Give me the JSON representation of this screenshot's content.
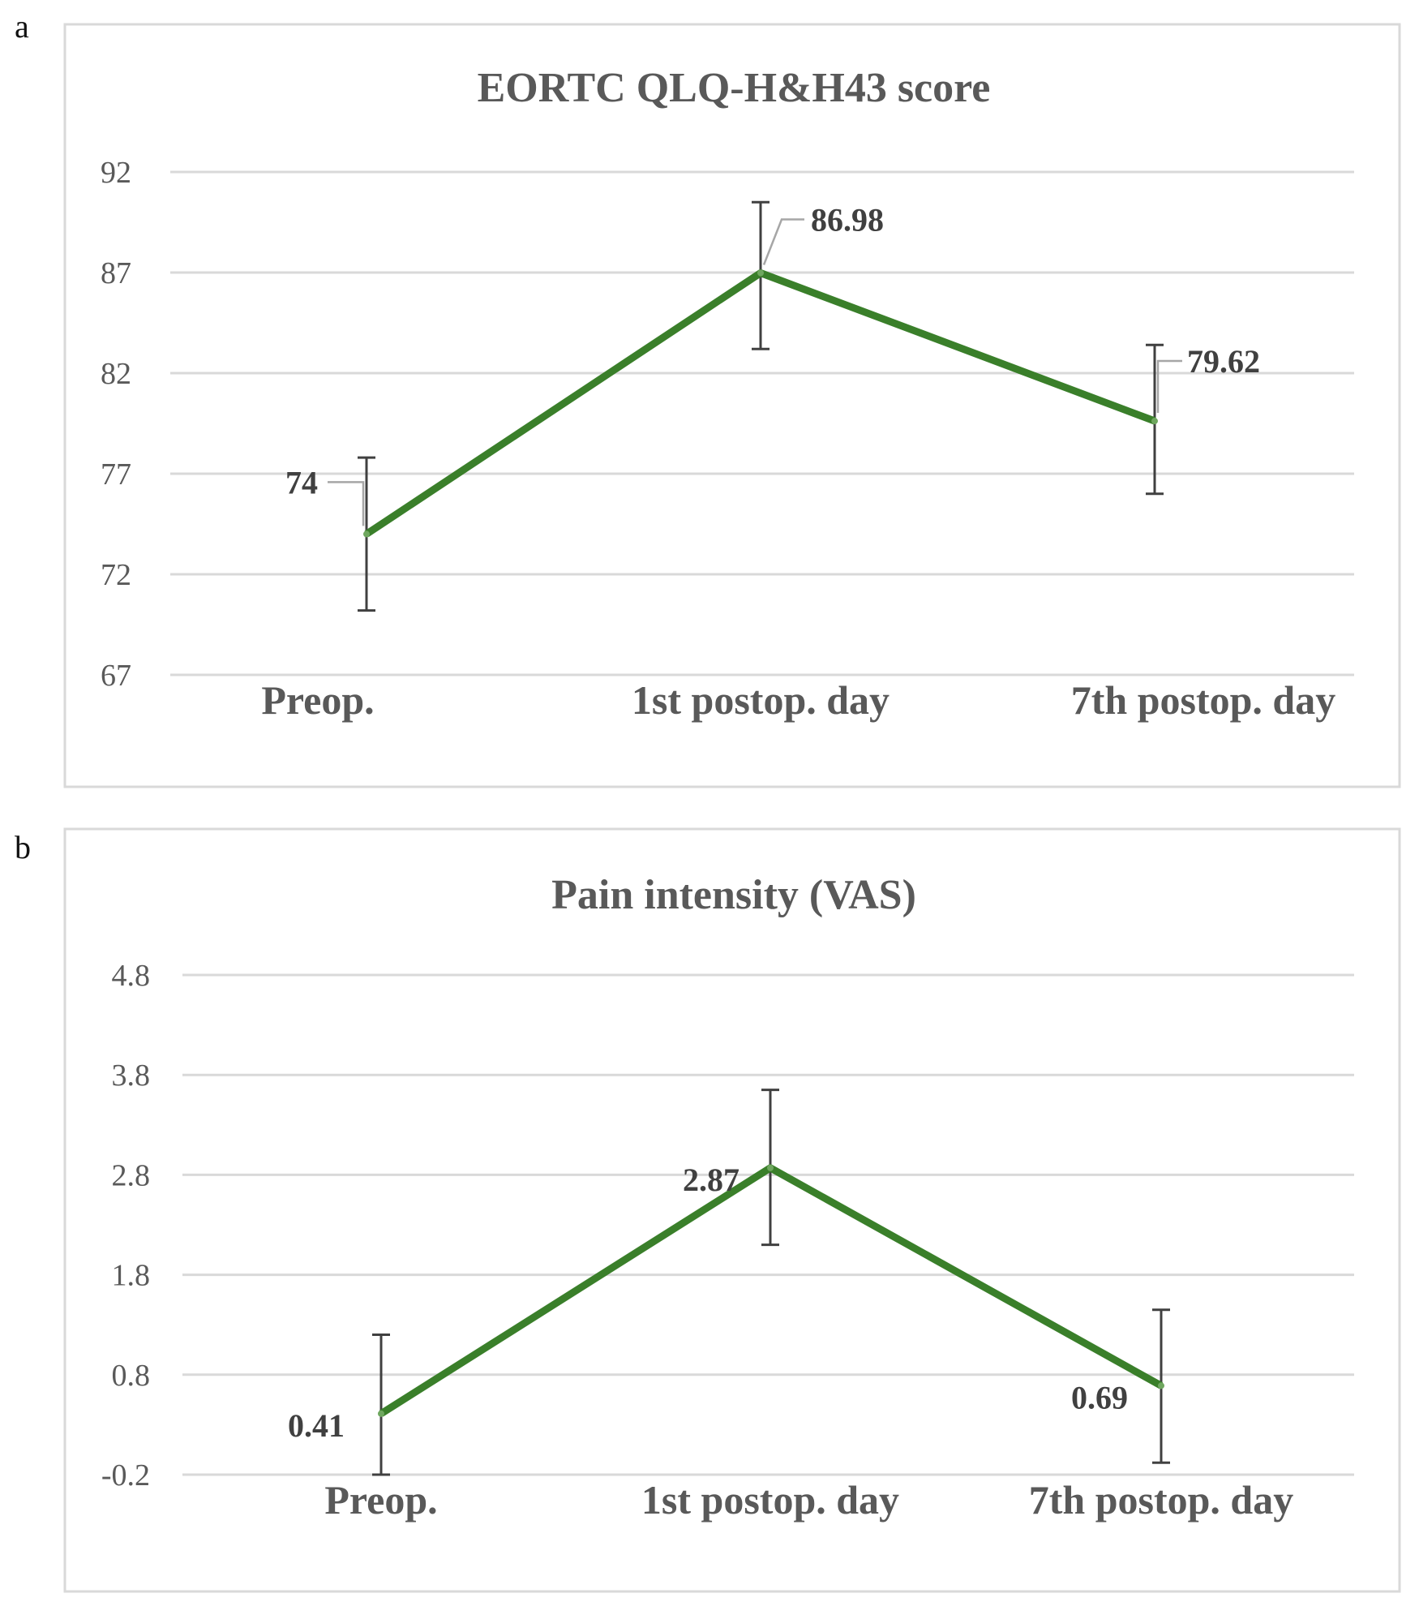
{
  "colors": {
    "series": "#3a7f2a",
    "grid": "#d9d9d9",
    "text": "#595959",
    "frame": "#d9d9d9"
  },
  "chart_data": [
    {
      "panel": "a",
      "type": "line",
      "title": "EORTC QLQ-H&H43 score",
      "categories": [
        "Preop.",
        "1st postop. day",
        "7th postop. day"
      ],
      "values": [
        74,
        86.98,
        79.62
      ],
      "value_labels": [
        "74",
        "86.98",
        "79.62"
      ],
      "error": {
        "upper": [
          77.8,
          90.5,
          83.4
        ],
        "lower": [
          70.2,
          83.2,
          76.0
        ]
      },
      "yticks": [
        67,
        72,
        77,
        82,
        87,
        92
      ],
      "ylim": [
        67,
        92
      ],
      "grid": true
    },
    {
      "panel": "b",
      "type": "line",
      "title": "Pain intensity  (VAS)",
      "categories": [
        "Preop.",
        "1st postop. day",
        "7th postop. day"
      ],
      "values": [
        0.41,
        2.87,
        0.69
      ],
      "value_labels": [
        "0.41",
        "2.87",
        "0.69"
      ],
      "error": {
        "upper": [
          1.2,
          3.65,
          1.45
        ],
        "lower": [
          -0.2,
          2.1,
          -0.08
        ]
      },
      "yticks": [
        "-0.2",
        "0.8",
        "1.8",
        "2.8",
        "3.8",
        "4.8"
      ],
      "ylim": [
        -0.2,
        4.8
      ],
      "grid": true
    }
  ]
}
